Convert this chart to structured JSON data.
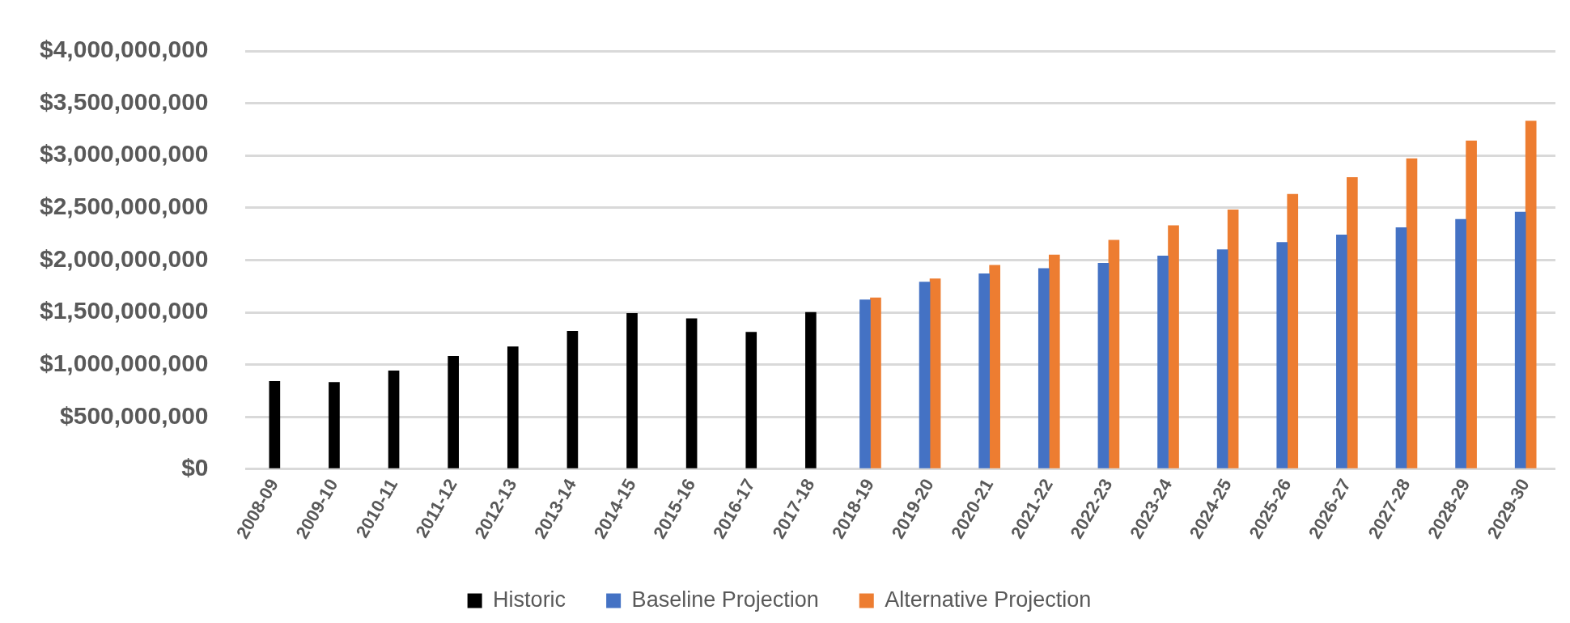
{
  "chart_data": {
    "type": "bar",
    "categories": [
      "2008-09",
      "2009-10",
      "2010-11",
      "2011-12",
      "2012-13",
      "2013-14",
      "2014-15",
      "2015-16",
      "2016-17",
      "2017-18",
      "2018-19",
      "2019-20",
      "2020-21",
      "2021-22",
      "2022-23",
      "2023-24",
      "2024-25",
      "2025-26",
      "2026-27",
      "2027-28",
      "2028-29",
      "2029-30"
    ],
    "series": [
      {
        "name": "Historic",
        "color": "#000000",
        "values": [
          840000000,
          830000000,
          940000000,
          1080000000,
          1170000000,
          1320000000,
          1490000000,
          1440000000,
          1310000000,
          1500000000,
          null,
          null,
          null,
          null,
          null,
          null,
          null,
          null,
          null,
          null,
          null,
          null
        ]
      },
      {
        "name": "Baseline Projection",
        "color": "#4472c4",
        "values": [
          null,
          null,
          null,
          null,
          null,
          null,
          null,
          null,
          null,
          null,
          1620000000,
          1790000000,
          1870000000,
          1920000000,
          1970000000,
          2040000000,
          2100000000,
          2170000000,
          2240000000,
          2310000000,
          2390000000,
          2460000000
        ]
      },
      {
        "name": "Alternative Projection",
        "color": "#ed7d31",
        "values": [
          null,
          null,
          null,
          null,
          null,
          null,
          null,
          null,
          null,
          null,
          1640000000,
          1820000000,
          1950000000,
          2050000000,
          2190000000,
          2330000000,
          2480000000,
          2630000000,
          2790000000,
          2970000000,
          3140000000,
          3330000000
        ]
      }
    ],
    "ylim": [
      0,
      4000000000
    ],
    "yticks": [
      {
        "value": 0,
        "label": "$0"
      },
      {
        "value": 500000000,
        "label": "$500,000,000"
      },
      {
        "value": 1000000000,
        "label": "$1,000,000,000"
      },
      {
        "value": 1500000000,
        "label": "$1,500,000,000"
      },
      {
        "value": 2000000000,
        "label": "$2,000,000,000"
      },
      {
        "value": 2500000000,
        "label": "$2,500,000,000"
      },
      {
        "value": 3000000000,
        "label": "$3,000,000,000"
      },
      {
        "value": 3500000000,
        "label": "$3,500,000,000"
      },
      {
        "value": 4000000000,
        "label": "$4,000,000,000"
      }
    ],
    "grid": "y",
    "legend": "bottom"
  }
}
